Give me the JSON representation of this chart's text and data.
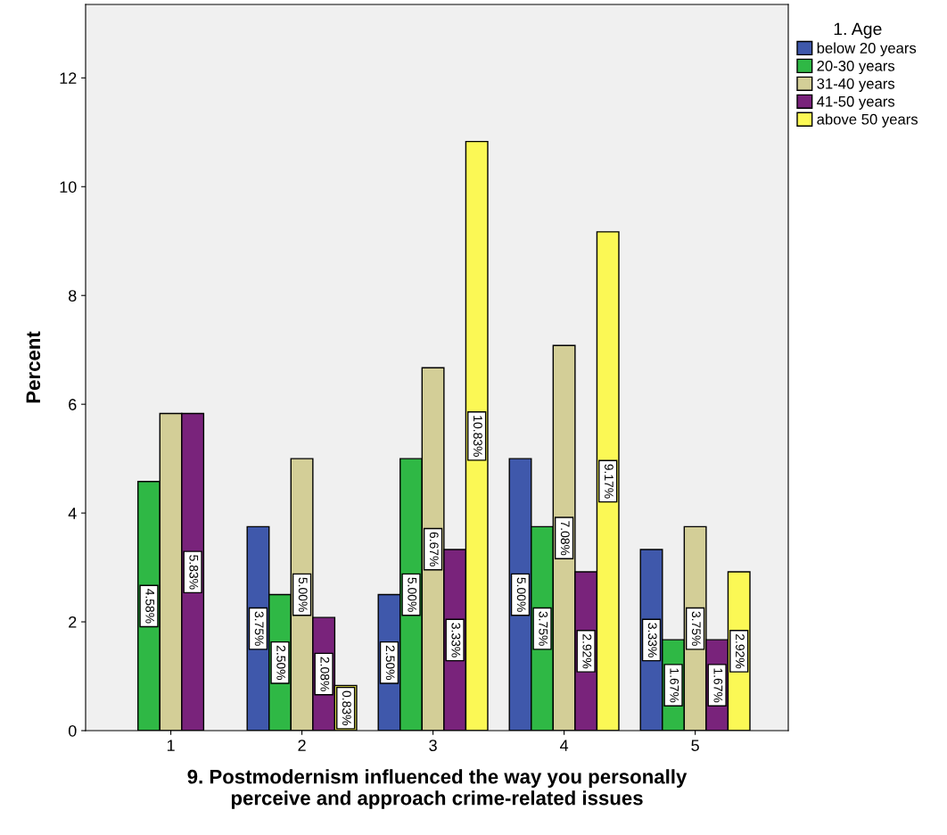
{
  "chart_data": {
    "type": "bar",
    "xlabel": "9. Postmodernism influenced the way you personally\nperceive and approach crime-related issues",
    "ylabel": "Percent",
    "legend_title": "1. Age",
    "legend": "top right",
    "categories": [
      "1",
      "2",
      "3",
      "4",
      "5"
    ],
    "series": [
      {
        "name": "below 20 years",
        "color": "#3f58ab",
        "values": [
          null,
          3.75,
          2.5,
          5.0,
          3.33
        ],
        "value_labels": [
          null,
          "3.75%",
          "2.50%",
          "5.00%",
          "3.33%"
        ]
      },
      {
        "name": "20-30 years",
        "color": "#2fb845",
        "values": [
          4.58,
          2.5,
          5.0,
          3.75,
          1.67
        ],
        "value_labels": [
          "4.58%",
          "2.50%",
          "5.00%",
          "3.75%",
          "1.67%"
        ]
      },
      {
        "name": "31-40 years",
        "color": "#d3ce97",
        "values": [
          5.83,
          5.0,
          6.67,
          7.08,
          3.75
        ],
        "value_labels": [
          null,
          "5.00%",
          "6.67%",
          "7.08%",
          "3.75%"
        ]
      },
      {
        "name": "41-50 years",
        "color": "#79237b",
        "values": [
          5.83,
          2.08,
          3.33,
          2.92,
          1.67
        ],
        "value_labels": [
          "5.83%",
          "2.08%",
          "3.33%",
          "2.92%",
          "1.67%"
        ]
      },
      {
        "name": "above 50 years",
        "color": "#fbf855",
        "values": [
          null,
          0.83,
          10.83,
          9.17,
          2.92
        ],
        "value_labels": [
          null,
          "0.83%",
          "10.83%",
          "9.17%",
          "2.92%"
        ]
      }
    ],
    "ylim": [
      0,
      13.35
    ],
    "yticks": [
      0,
      2,
      4,
      6,
      8,
      10,
      12
    ],
    "grid": false
  }
}
